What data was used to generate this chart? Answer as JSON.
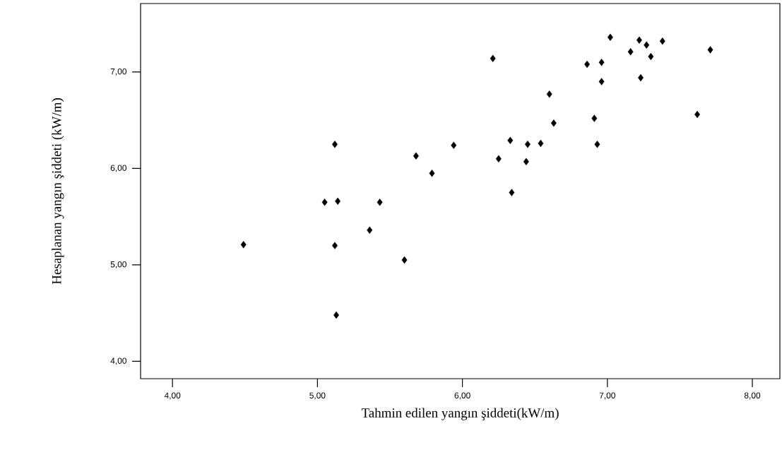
{
  "chart_data": {
    "type": "scatter",
    "xlabel": "Tahmin edilen yangın şiddeti(kW/m)",
    "ylabel": "Hesaplanan yangın şiddeti  (kW/m)",
    "x": [
      4.49,
      5.12,
      5.05,
      5.14,
      5.43,
      5.36,
      5.12,
      5.6,
      5.13,
      5.68,
      5.79,
      5.94,
      6.21,
      6.33,
      6.25,
      6.45,
      6.44,
      6.54,
      6.34,
      6.6,
      6.63,
      6.86,
      6.96,
      6.96,
      6.91,
      6.93,
      7.02,
      7.16,
      7.22,
      7.27,
      7.3,
      7.23,
      7.38,
      7.71,
      7.62
    ],
    "values": [
      5.21,
      6.25,
      5.65,
      5.66,
      5.65,
      5.36,
      5.2,
      5.05,
      4.48,
      6.13,
      5.95,
      6.24,
      7.14,
      6.29,
      6.1,
      6.25,
      6.07,
      6.26,
      5.75,
      6.77,
      6.47,
      7.08,
      7.1,
      6.9,
      6.52,
      6.25,
      7.36,
      7.21,
      7.33,
      7.28,
      7.16,
      6.94,
      7.32,
      7.23,
      6.56
    ],
    "color": "#000000",
    "marker": "diamond",
    "grid": false,
    "xlim": [
      3.78,
      8.19
    ],
    "ylim": [
      3.82,
      7.71
    ],
    "xticks": [
      {
        "value": 4,
        "label": "4,00"
      },
      {
        "value": 5,
        "label": "5,00"
      },
      {
        "value": 6,
        "label": "6,00"
      },
      {
        "value": 7,
        "label": "7,00"
      },
      {
        "value": 8,
        "label": "8,00"
      }
    ],
    "yticks": [
      {
        "value": 4,
        "label": "4,00"
      },
      {
        "value": 5,
        "label": "5,00"
      },
      {
        "value": 6,
        "label": "6,00"
      },
      {
        "value": 7,
        "label": "7,00"
      }
    ]
  }
}
